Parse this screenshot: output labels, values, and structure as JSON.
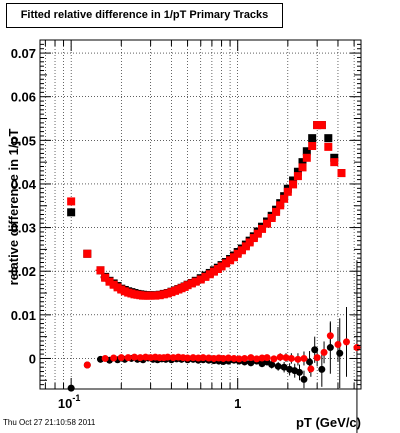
{
  "title": "Fitted relative difference in 1/pT  Primary Tracks",
  "footer": "Thu Oct 27 21:10:58 2011",
  "chart_data": {
    "type": "scatter",
    "title": "Fitted relative difference in 1/pT  Primary Tracks",
    "xlabel": "pT (GeV/c)",
    "ylabel": "relative difference in 1/pT",
    "x_scale": "log",
    "xlim": [
      0.065,
      5.5
    ],
    "ylim": [
      -0.007,
      0.073
    ],
    "grid": true,
    "x_ticks": [
      {
        "value": 0.1,
        "label": "10⁻¹"
      },
      {
        "value": 1,
        "label": "1"
      }
    ],
    "y_ticks": [
      0,
      0.01,
      0.02,
      0.03,
      0.04,
      0.05,
      0.06,
      0.07
    ],
    "series": [
      {
        "color": "#000000",
        "marker": "square",
        "x": [
          0.1,
          0.125,
          0.15,
          0.16,
          0.17,
          0.18,
          0.19,
          0.2,
          0.21,
          0.22,
          0.23,
          0.24,
          0.25,
          0.26,
          0.27,
          0.28,
          0.29,
          0.3,
          0.32,
          0.34,
          0.36,
          0.38,
          0.4,
          0.42,
          0.44,
          0.46,
          0.48,
          0.5,
          0.53,
          0.56,
          0.6,
          0.64,
          0.68,
          0.72,
          0.76,
          0.8,
          0.85,
          0.9,
          0.95,
          1.0,
          1.06,
          1.12,
          1.18,
          1.25,
          1.32,
          1.4,
          1.5,
          1.6,
          1.7,
          1.8,
          1.9,
          2.0,
          2.15,
          2.3,
          2.45,
          2.6,
          2.8,
          3.0,
          3.2,
          3.5,
          3.8,
          4.2
        ],
        "y": [
          0.0335,
          0.024,
          0.0202,
          0.0187,
          0.0178,
          0.0172,
          0.0166,
          0.016,
          0.0157,
          0.0154,
          0.0152,
          0.015,
          0.0148,
          0.0147,
          0.0146,
          0.0145,
          0.0145,
          0.0145,
          0.0145,
          0.0146,
          0.0148,
          0.015,
          0.0153,
          0.0156,
          0.0159,
          0.0162,
          0.0165,
          0.0169,
          0.0173,
          0.0178,
          0.0184,
          0.019,
          0.0196,
          0.0202,
          0.0208,
          0.0214,
          0.0221,
          0.0228,
          0.0236,
          0.0244,
          0.0252,
          0.0261,
          0.027,
          0.028,
          0.0291,
          0.0302,
          0.0314,
          0.0327,
          0.0341,
          0.0356,
          0.0372,
          0.0389,
          0.0408,
          0.0428,
          0.045,
          0.0475,
          0.0505,
          0.0535,
          0.0535,
          0.0505,
          0.046,
          0.0425
        ],
        "x_low": [
          0.095,
          0.12,
          0.14,
          0.15,
          0.16,
          0.17,
          0.18,
          0.19,
          0.2,
          0.21,
          0.22,
          0.23,
          0.24,
          0.25,
          0.26,
          0.27,
          0.28,
          0.29,
          0.31,
          0.33,
          0.35,
          0.37,
          0.39,
          0.41,
          0.43,
          0.45,
          0.47,
          0.49,
          0.52,
          0.55,
          0.58,
          0.62,
          0.66,
          0.7,
          0.74,
          0.78,
          0.83,
          0.88,
          0.93,
          0.98,
          1.03,
          1.09,
          1.15,
          1.22,
          1.29,
          1.36,
          1.45,
          1.55,
          1.65,
          1.75,
          1.85,
          1.95,
          2.07,
          2.22,
          2.37,
          2.52,
          2.7,
          2.9,
          3.1,
          3.35,
          3.65,
          4.0
        ]
      },
      {
        "color": "#ff0000",
        "marker": "square",
        "x": [
          0.1,
          0.125,
          0.15,
          0.16,
          0.17,
          0.18,
          0.19,
          0.2,
          0.21,
          0.22,
          0.23,
          0.24,
          0.25,
          0.26,
          0.27,
          0.28,
          0.29,
          0.3,
          0.32,
          0.34,
          0.36,
          0.38,
          0.4,
          0.42,
          0.44,
          0.46,
          0.48,
          0.5,
          0.53,
          0.56,
          0.6,
          0.64,
          0.68,
          0.72,
          0.76,
          0.8,
          0.85,
          0.9,
          0.95,
          1.0,
          1.06,
          1.12,
          1.18,
          1.25,
          1.32,
          1.4,
          1.5,
          1.6,
          1.7,
          1.8,
          1.9,
          2.0,
          2.15,
          2.3,
          2.45,
          2.6,
          2.8,
          3.0,
          3.2,
          3.5,
          3.8,
          4.2
        ],
        "y": [
          0.036,
          0.024,
          0.0202,
          0.0185,
          0.0176,
          0.0169,
          0.0163,
          0.0158,
          0.0154,
          0.0151,
          0.0149,
          0.0147,
          0.0146,
          0.0145,
          0.0144,
          0.0144,
          0.0144,
          0.0144,
          0.0144,
          0.0145,
          0.0147,
          0.0149,
          0.0152,
          0.0155,
          0.0158,
          0.0161,
          0.0164,
          0.0168,
          0.0172,
          0.0176,
          0.0181,
          0.0187,
          0.0193,
          0.0199,
          0.0205,
          0.0211,
          0.0218,
          0.0225,
          0.0232,
          0.024,
          0.0248,
          0.0257,
          0.0266,
          0.0276,
          0.0286,
          0.0297,
          0.0309,
          0.0322,
          0.0336,
          0.0351,
          0.0366,
          0.0382,
          0.0399,
          0.0418,
          0.0438,
          0.046,
          0.0487,
          0.0535,
          0.0535,
          0.0485,
          0.045,
          0.0425
        ],
        "x_low": [
          0.095,
          0.12,
          0.14,
          0.15,
          0.16,
          0.17,
          0.18,
          0.19,
          0.2,
          0.21,
          0.22,
          0.23,
          0.24,
          0.25,
          0.26,
          0.27,
          0.28,
          0.29,
          0.31,
          0.33,
          0.35,
          0.37,
          0.39,
          0.41,
          0.43,
          0.45,
          0.47,
          0.49,
          0.52,
          0.55,
          0.58,
          0.62,
          0.66,
          0.7,
          0.74,
          0.78,
          0.83,
          0.88,
          0.93,
          0.98,
          1.03,
          1.09,
          1.15,
          1.22,
          1.29,
          1.36,
          1.45,
          1.55,
          1.65,
          1.75,
          1.85,
          1.95,
          2.07,
          2.22,
          2.37,
          2.52,
          2.7,
          2.9,
          3.1,
          3.35,
          3.65,
          4.0
        ]
      },
      {
        "color": "#000000",
        "marker": "circle",
        "x": [
          0.1,
          0.125,
          0.15,
          0.17,
          0.19,
          0.21,
          0.23,
          0.25,
          0.27,
          0.29,
          0.31,
          0.33,
          0.35,
          0.37,
          0.4,
          0.43,
          0.46,
          0.5,
          0.54,
          0.58,
          0.62,
          0.67,
          0.72,
          0.77,
          0.82,
          0.88,
          0.95,
          1.02,
          1.1,
          1.2,
          1.3,
          1.4,
          1.5,
          1.6,
          1.75,
          1.9,
          2.05,
          2.2,
          2.35,
          2.5,
          2.7,
          2.9,
          3.2,
          3.6,
          4.1
        ],
        "y": [
          -0.0068,
          -0.0015,
          -0.0002,
          -0.0004,
          -0.0003,
          -0.0002,
          0.0,
          -0.0002,
          -0.0003,
          0.0001,
          -0.0002,
          -0.0003,
          -0.0001,
          -0.0002,
          -0.0003,
          -0.0001,
          -0.0002,
          -0.0003,
          -0.0002,
          -0.0004,
          -0.0003,
          -0.0004,
          -0.0005,
          -0.0006,
          -0.0007,
          -0.0006,
          -0.0004,
          -0.0006,
          -0.0008,
          -0.001,
          -0.0006,
          -0.0012,
          -0.0008,
          -0.0014,
          -0.0018,
          -0.002,
          -0.0025,
          -0.0028,
          -0.0032,
          -0.0048,
          -0.0008,
          0.002,
          -0.0025,
          0.0025,
          0.0012
        ],
        "y_err": [
          0,
          0.0003,
          0.0002,
          0.0002,
          0.0002,
          0.0002,
          0.0002,
          0.0002,
          0.0002,
          0.0002,
          0.0002,
          0.0002,
          0.0002,
          0.0002,
          0.0002,
          0.0002,
          0.0002,
          0.0002,
          0.0002,
          0.0002,
          0.0003,
          0.0003,
          0.0003,
          0.0003,
          0.0003,
          0.0004,
          0.0004,
          0.0004,
          0.0005,
          0.0005,
          0.0006,
          0.0007,
          0.0008,
          0.0009,
          0.001,
          0.0012,
          0.0014,
          0.0016,
          0.0018,
          0.002,
          0.0025,
          0.003,
          0.004,
          0.006,
          0.008
        ]
      },
      {
        "color": "#ff0000",
        "marker": "circle",
        "x": [
          0.125,
          0.16,
          0.18,
          0.2,
          0.22,
          0.24,
          0.26,
          0.28,
          0.3,
          0.32,
          0.34,
          0.36,
          0.38,
          0.41,
          0.44,
          0.47,
          0.5,
          0.54,
          0.58,
          0.62,
          0.67,
          0.72,
          0.77,
          0.82,
          0.88,
          0.95,
          1.02,
          1.1,
          1.2,
          1.3,
          1.4,
          1.5,
          1.65,
          1.8,
          1.95,
          2.1,
          2.3,
          2.5,
          2.75,
          3.0,
          3.3,
          3.6,
          4.0,
          4.5,
          5.2
        ],
        "y": [
          -0.0015,
          0.0,
          0.0001,
          0.0002,
          0.0002,
          0.0003,
          0.0002,
          0.0003,
          0.0002,
          0.0003,
          0.0002,
          0.0002,
          0.0003,
          0.0002,
          0.0003,
          0.0002,
          0.0001,
          0.0002,
          0.0001,
          0.0002,
          0.0001,
          0.0,
          0.0001,
          0.0,
          0.0001,
          0.0,
          -0.0001,
          0.0,
          0.0002,
          -0.0001,
          0.0001,
          0.0002,
          -0.0001,
          0.0003,
          0.0002,
          0.0,
          -0.0002,
          0.0,
          -0.0024,
          0.0002,
          0.0014,
          0.0052,
          0.0032,
          0.0038,
          0.0025
        ],
        "y_err": [
          0.0003,
          0.0002,
          0.0002,
          0.0002,
          0.0002,
          0.0002,
          0.0002,
          0.0002,
          0.0002,
          0.0002,
          0.0002,
          0.0002,
          0.0002,
          0.0002,
          0.0002,
          0.0002,
          0.0002,
          0.0002,
          0.0002,
          0.0002,
          0.0002,
          0.0002,
          0.0003,
          0.0003,
          0.0003,
          0.0003,
          0.0004,
          0.0004,
          0.0004,
          0.0005,
          0.0006,
          0.0007,
          0.0008,
          0.0009,
          0.001,
          0.0012,
          0.0014,
          0.0016,
          0.0018,
          0.002,
          0.0025,
          0.003,
          0.004,
          0.008,
          0.02
        ]
      }
    ]
  }
}
